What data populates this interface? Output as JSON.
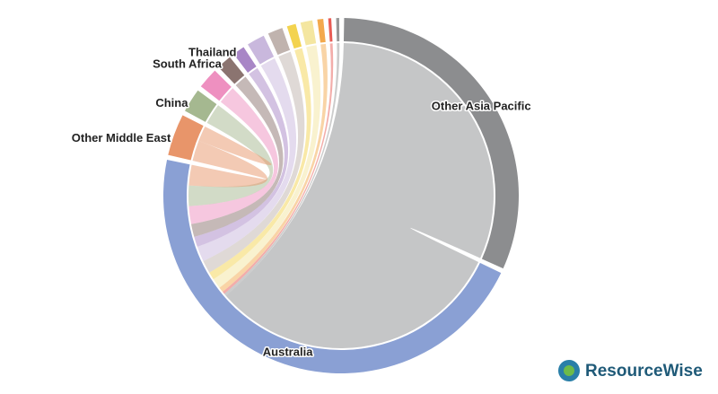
{
  "chart_data": {
    "type": "chord",
    "groups": [
      {
        "name": "Other Asia Pacific",
        "color": "#8c8d8f",
        "value": 116
      },
      {
        "name": "Australia",
        "color": "#8aa0d4",
        "value": 170
      },
      {
        "name": "Other Middle East",
        "color": "#e8956a",
        "value": 14
      },
      {
        "name": "China",
        "color": "#a5b890",
        "value": 8
      },
      {
        "name": null,
        "color": "#ee90c0",
        "value": 7
      },
      {
        "name": "South Africa",
        "color": "#8b7470",
        "value": 5
      },
      {
        "name": "Thailand",
        "color": "#a886c6",
        "value": 4
      },
      {
        "name": null,
        "color": "#c9b8dd",
        "value": 6
      },
      {
        "name": null,
        "color": "#c0b3ae",
        "value": 5
      },
      {
        "name": null,
        "color": "#f3d34f",
        "value": 3
      },
      {
        "name": null,
        "color": "#f4e6a0",
        "value": 4
      },
      {
        "name": null,
        "color": "#f3a94d",
        "value": 2
      },
      {
        "name": null,
        "color": "#e85c55",
        "value": 1
      },
      {
        "name": null,
        "color": "#999999",
        "value": 1
      }
    ],
    "flows": [
      {
        "source": 0,
        "target": 1,
        "value": 116
      },
      {
        "source": 13,
        "target": 1,
        "value": 1
      },
      {
        "source": 12,
        "target": 1,
        "value": 1
      },
      {
        "source": 11,
        "target": 1,
        "value": 2
      },
      {
        "source": 10,
        "target": 1,
        "value": 4
      },
      {
        "source": 9,
        "target": 1,
        "value": 3
      },
      {
        "source": 8,
        "target": 1,
        "value": 5
      },
      {
        "source": 7,
        "target": 1,
        "value": 6
      },
      {
        "source": 6,
        "target": 1,
        "value": 4
      },
      {
        "source": 5,
        "target": 1,
        "value": 5
      },
      {
        "source": 4,
        "target": 1,
        "value": 7
      },
      {
        "source": 3,
        "target": 1,
        "value": 8
      },
      {
        "source": 2,
        "target": 1,
        "value": 8
      },
      {
        "source": 2,
        "target": 2,
        "value": 3
      }
    ]
  },
  "logo": "ResourceWise"
}
